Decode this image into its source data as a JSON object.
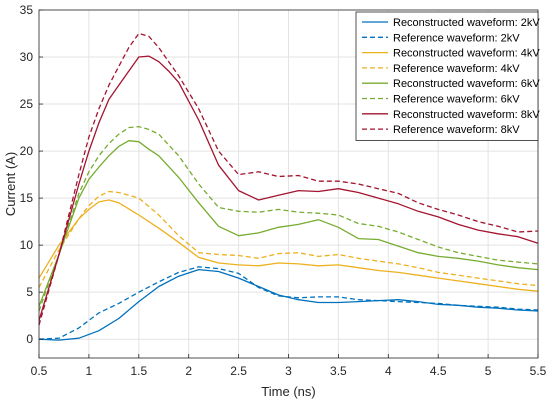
{
  "chart_data": {
    "type": "line",
    "title": "",
    "xlabel": "Time (ns)",
    "ylabel": "Current (A)",
    "xlim": [
      0.5,
      5.5
    ],
    "ylim": [
      -2,
      35
    ],
    "xticks": [
      0.5,
      1,
      1.5,
      2,
      2.5,
      3,
      3.5,
      4,
      4.5,
      5,
      5.5
    ],
    "xtick_labels": [
      "0.5",
      "1",
      "1.5",
      "2",
      "2.5",
      "3",
      "3.5",
      "4",
      "4.5",
      "5",
      "5.5"
    ],
    "yticks": [
      0,
      5,
      10,
      15,
      20,
      25,
      30,
      35
    ],
    "ytick_labels": [
      "0",
      "5",
      "10",
      "15",
      "20",
      "25",
      "30",
      "35"
    ],
    "grid": true,
    "legend_position": "top-right",
    "series": [
      {
        "name": "Reconstructed waveform: 2kV",
        "color": "#0072bd",
        "style": "solid",
        "x": [
          0.5,
          0.7,
          0.9,
          1.1,
          1.3,
          1.5,
          1.7,
          1.9,
          2.1,
          2.3,
          2.5,
          2.7,
          2.9,
          3.1,
          3.3,
          3.5,
          3.7,
          3.9,
          4.1,
          4.3,
          4.5,
          4.7,
          4.9,
          5.1,
          5.3,
          5.5
        ],
        "y": [
          0.0,
          -0.1,
          0.1,
          0.9,
          2.2,
          4.0,
          5.6,
          6.7,
          7.4,
          7.2,
          6.5,
          5.6,
          4.7,
          4.2,
          3.9,
          3.9,
          4.0,
          4.1,
          4.2,
          4.0,
          3.7,
          3.6,
          3.4,
          3.3,
          3.1,
          3.0
        ]
      },
      {
        "name": "Reference waveform: 2kV",
        "color": "#0072bd",
        "style": "dashed",
        "x": [
          0.5,
          0.7,
          0.9,
          1.1,
          1.3,
          1.5,
          1.7,
          1.9,
          2.1,
          2.3,
          2.5,
          2.7,
          2.9,
          3.1,
          3.3,
          3.5,
          3.7,
          3.9,
          4.1,
          4.3,
          4.5,
          4.7,
          4.9,
          5.1,
          5.3,
          5.5
        ],
        "y": [
          0.0,
          0.1,
          1.2,
          2.8,
          3.8,
          5.0,
          6.1,
          7.1,
          7.7,
          7.5,
          7.0,
          5.5,
          4.6,
          4.4,
          4.5,
          4.5,
          4.2,
          4.1,
          4.0,
          3.9,
          3.8,
          3.6,
          3.5,
          3.4,
          3.2,
          3.1
        ]
      },
      {
        "name": "Reconstructed waveform: 4kV",
        "color": "#edb120",
        "style": "solid",
        "x": [
          0.5,
          0.7,
          0.9,
          1.0,
          1.1,
          1.2,
          1.3,
          1.5,
          1.7,
          1.9,
          2.1,
          2.3,
          2.5,
          2.7,
          2.9,
          3.1,
          3.3,
          3.5,
          3.7,
          3.9,
          4.1,
          4.3,
          4.5,
          4.7,
          4.9,
          5.1,
          5.3,
          5.5
        ],
        "y": [
          6.5,
          10.0,
          12.8,
          13.8,
          14.6,
          14.8,
          14.5,
          13.2,
          11.8,
          10.3,
          8.7,
          8.1,
          7.9,
          7.8,
          8.1,
          8.0,
          7.8,
          7.9,
          7.6,
          7.3,
          7.1,
          6.8,
          6.5,
          6.2,
          5.9,
          5.6,
          5.3,
          5.1
        ]
      },
      {
        "name": "Reference waveform: 4kV",
        "color": "#edb120",
        "style": "dashed",
        "x": [
          0.5,
          0.7,
          0.9,
          1.0,
          1.1,
          1.2,
          1.3,
          1.5,
          1.7,
          1.9,
          2.1,
          2.3,
          2.5,
          2.7,
          2.9,
          3.1,
          3.3,
          3.5,
          3.7,
          3.9,
          4.1,
          4.3,
          4.5,
          4.7,
          4.9,
          5.1,
          5.3,
          5.5
        ],
        "y": [
          5.5,
          9.5,
          12.8,
          14.2,
          15.2,
          15.7,
          15.6,
          15.0,
          13.2,
          11.0,
          9.2,
          9.0,
          8.9,
          8.6,
          9.1,
          9.2,
          8.8,
          9.0,
          8.6,
          8.3,
          8.0,
          7.6,
          7.1,
          6.8,
          6.5,
          6.2,
          5.9,
          5.7
        ]
      },
      {
        "name": "Reconstructed waveform: 6kV",
        "color": "#77ac30",
        "style": "solid",
        "x": [
          0.5,
          0.7,
          0.9,
          1.0,
          1.1,
          1.2,
          1.3,
          1.4,
          1.5,
          1.6,
          1.7,
          1.9,
          2.1,
          2.3,
          2.5,
          2.7,
          2.9,
          3.1,
          3.3,
          3.5,
          3.7,
          3.9,
          4.1,
          4.3,
          4.5,
          4.7,
          4.9,
          5.1,
          5.3,
          5.5
        ],
        "y": [
          3.5,
          9.0,
          15.0,
          17.0,
          18.3,
          19.5,
          20.5,
          21.1,
          21.0,
          20.2,
          19.5,
          17.2,
          14.5,
          12.0,
          11.0,
          11.3,
          11.9,
          12.2,
          12.7,
          11.9,
          10.7,
          10.6,
          9.9,
          9.2,
          8.8,
          8.6,
          8.3,
          7.9,
          7.6,
          7.4
        ]
      },
      {
        "name": "Reference waveform: 6kV",
        "color": "#77ac30",
        "style": "dashed",
        "x": [
          0.5,
          0.7,
          0.9,
          1.0,
          1.1,
          1.2,
          1.3,
          1.4,
          1.5,
          1.6,
          1.7,
          1.9,
          2.1,
          2.3,
          2.5,
          2.7,
          2.9,
          3.1,
          3.3,
          3.5,
          3.7,
          3.9,
          4.1,
          4.3,
          4.5,
          4.7,
          4.9,
          5.1,
          5.3,
          5.5
        ],
        "y": [
          3.0,
          9.0,
          15.5,
          17.8,
          19.5,
          20.8,
          21.8,
          22.5,
          22.6,
          22.3,
          21.8,
          19.5,
          16.5,
          14.0,
          13.6,
          13.5,
          13.8,
          13.5,
          13.4,
          13.2,
          12.3,
          12.0,
          11.4,
          10.6,
          9.8,
          9.2,
          8.8,
          8.4,
          8.2,
          8.0
        ]
      },
      {
        "name": "Reconstructed waveform: 8kV",
        "color": "#a2142f",
        "style": "solid",
        "x": [
          0.5,
          0.7,
          0.9,
          1.0,
          1.1,
          1.2,
          1.3,
          1.4,
          1.5,
          1.6,
          1.7,
          1.8,
          1.9,
          2.1,
          2.3,
          2.5,
          2.7,
          2.9,
          3.1,
          3.3,
          3.5,
          3.7,
          3.9,
          4.1,
          4.3,
          4.5,
          4.7,
          4.9,
          5.1,
          5.3,
          5.5
        ],
        "y": [
          2.0,
          9.0,
          16.5,
          20.0,
          23.0,
          25.5,
          27.0,
          28.5,
          30.0,
          30.1,
          29.5,
          28.5,
          27.3,
          23.3,
          18.5,
          15.8,
          14.8,
          15.3,
          15.8,
          15.7,
          16.0,
          15.6,
          15.0,
          14.4,
          13.6,
          13.0,
          12.2,
          11.6,
          11.2,
          10.9,
          10.2
        ]
      },
      {
        "name": "Reference waveform: 8kV",
        "color": "#a2142f",
        "style": "dashed",
        "x": [
          0.5,
          0.7,
          0.9,
          1.0,
          1.1,
          1.2,
          1.3,
          1.4,
          1.5,
          1.6,
          1.7,
          1.8,
          1.9,
          2.1,
          2.3,
          2.5,
          2.7,
          2.9,
          3.1,
          3.3,
          3.5,
          3.7,
          3.9,
          4.1,
          4.3,
          4.5,
          4.7,
          4.9,
          5.1,
          5.3,
          5.5
        ],
        "y": [
          1.5,
          9.0,
          17.5,
          21.5,
          24.5,
          27.0,
          29.0,
          31.0,
          32.5,
          32.2,
          31.0,
          29.5,
          28.0,
          24.5,
          20.0,
          17.5,
          17.8,
          17.3,
          17.4,
          16.8,
          16.8,
          16.5,
          16.0,
          15.5,
          14.5,
          13.8,
          13.2,
          12.5,
          12.0,
          11.4,
          11.5
        ]
      }
    ]
  }
}
